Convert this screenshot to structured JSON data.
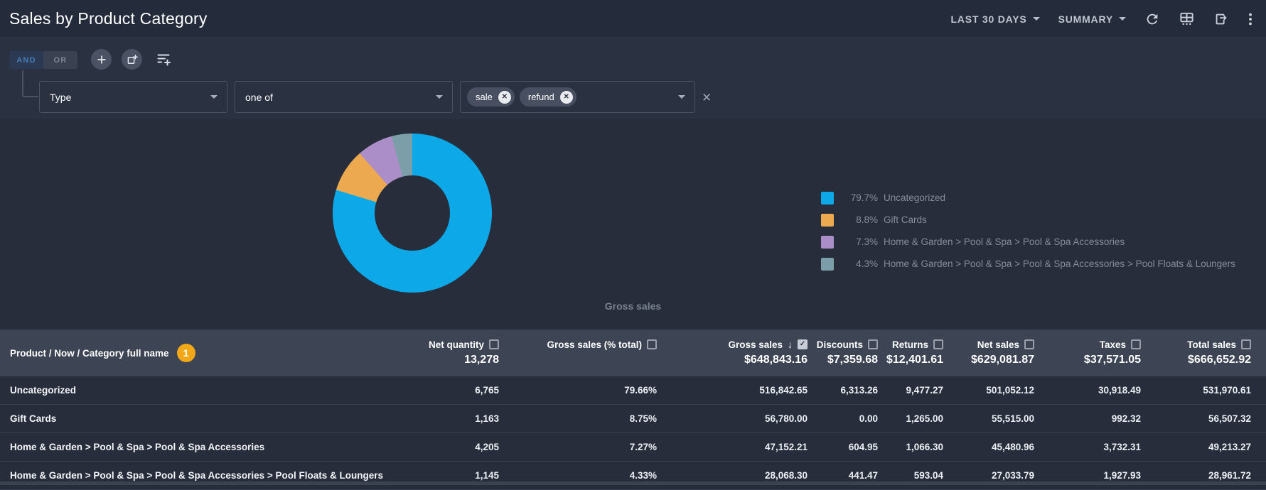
{
  "header": {
    "title": "Sales by Product Category",
    "date_range_label": "LAST 30 DAYS",
    "view_label": "SUMMARY"
  },
  "filter_bar": {
    "logic_and": "AND",
    "logic_or": "OR",
    "field": "Type",
    "operator": "one of",
    "values": [
      "sale",
      "refund"
    ]
  },
  "chart_data": {
    "type": "pie",
    "donut": true,
    "metric_label": "Gross sales",
    "legend_position": "right",
    "categories": [
      "Uncategorized",
      "Gift Cards",
      "Home & Garden > Pool & Spa > Pool & Spa Accessories",
      "Home & Garden > Pool & Spa > Pool & Spa Accessories > Pool Floats & Loungers"
    ],
    "values": [
      79.7,
      8.8,
      7.3,
      4.3
    ],
    "unit": "%",
    "colors": [
      "#0DA8E8",
      "#EDA94F",
      "#AB8EC7",
      "#7C9EA8"
    ]
  },
  "table": {
    "name_column": {
      "label": "Product / Now / Category full name",
      "badge": "1"
    },
    "columns": [
      {
        "label": "Net quantity",
        "checked": false,
        "sort": null,
        "total": "13,278"
      },
      {
        "label": "Gross sales (% total)",
        "checked": false,
        "sort": null,
        "total": ""
      },
      {
        "label": "Gross sales",
        "checked": true,
        "sort": "desc",
        "total": "$648,843.16"
      },
      {
        "label": "Discounts",
        "checked": false,
        "sort": null,
        "total": "$7,359.68"
      },
      {
        "label": "Returns",
        "checked": false,
        "sort": null,
        "total": "$12,401.61"
      },
      {
        "label": "Net sales",
        "checked": false,
        "sort": null,
        "total": "$629,081.87"
      },
      {
        "label": "Taxes",
        "checked": false,
        "sort": null,
        "total": "$37,571.05"
      },
      {
        "label": "Total sales",
        "checked": false,
        "sort": null,
        "total": "$666,652.92"
      }
    ],
    "rows": [
      {
        "name": "Uncategorized",
        "values": [
          "6,765",
          "79.66%",
          "516,842.65",
          "6,313.26",
          "9,477.27",
          "501,052.12",
          "30,918.49",
          "531,970.61"
        ]
      },
      {
        "name": "Gift Cards",
        "values": [
          "1,163",
          "8.75%",
          "56,780.00",
          "0.00",
          "1,265.00",
          "55,515.00",
          "992.32",
          "56,507.32"
        ]
      },
      {
        "name": "Home & Garden > Pool & Spa > Pool & Spa Accessories",
        "values": [
          "4,205",
          "7.27%",
          "47,152.21",
          "604.95",
          "1,066.30",
          "45,480.96",
          "3,732.31",
          "49,213.27"
        ]
      },
      {
        "name": "Home & Garden > Pool & Spa > Pool & Spa Accessories > Pool Floats & Loungers",
        "values": [
          "1,145",
          "4.33%",
          "28,068.30",
          "441.47",
          "593.04",
          "27,033.79",
          "1,927.93",
          "28,961.72"
        ]
      }
    ]
  },
  "colors": {
    "accent_blue": "#0DA8E8",
    "badge_orange": "#F2A716",
    "header_bg": "#3D4454"
  }
}
